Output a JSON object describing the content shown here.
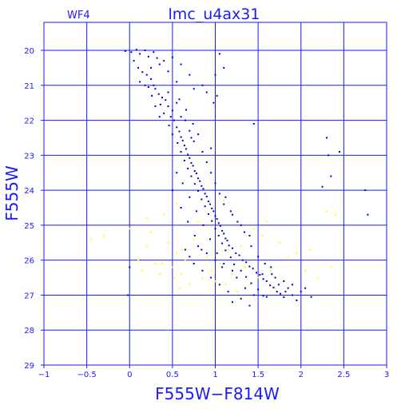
{
  "chart_data": {
    "type": "scatter",
    "title": "lmc_u4ax31",
    "panel_label": "WF4",
    "xlabel": "F555W−F814W",
    "ylabel": "F555W",
    "xlim": [
      -1,
      3
    ],
    "ylim": [
      29,
      19.2
    ],
    "y_inverted": true,
    "grid": true,
    "x_ticks": [
      -1,
      -0.5,
      0,
      0.5,
      1,
      1.5,
      2,
      2.5,
      3
    ],
    "x_tick_labels": [
      "−1",
      "−0.5",
      "0",
      "0.5",
      "1",
      "1.5",
      "2",
      "2.5",
      "3"
    ],
    "y_ticks": [
      20,
      21,
      22,
      23,
      24,
      25,
      26,
      27,
      28,
      29
    ],
    "y_tick_labels": [
      "20",
      "21",
      "22",
      "23",
      "24",
      "25",
      "26",
      "27",
      "28",
      "29"
    ],
    "colors": {
      "axes": "#1a1aff",
      "main_series": "#0000cc",
      "secondary_series": "#ffff00"
    },
    "series": [
      {
        "color": "#0000cc",
        "points": [
          [
            -0.05,
            20.02
          ],
          [
            0.02,
            20.05
          ],
          [
            0.08,
            19.98
          ],
          [
            0.12,
            20.1
          ],
          [
            0.18,
            20.0
          ],
          [
            0.22,
            20.18
          ],
          [
            0.28,
            20.05
          ],
          [
            0.32,
            20.22
          ],
          [
            0.05,
            20.3
          ],
          [
            0.1,
            20.5
          ],
          [
            0.15,
            20.62
          ],
          [
            0.2,
            20.7
          ],
          [
            0.25,
            20.82
          ],
          [
            0.12,
            20.9
          ],
          [
            0.18,
            21.0
          ],
          [
            0.22,
            21.05
          ],
          [
            0.3,
            21.1
          ],
          [
            0.34,
            21.25
          ],
          [
            0.26,
            21.3
          ],
          [
            0.38,
            21.35
          ],
          [
            0.42,
            21.42
          ],
          [
            0.36,
            21.55
          ],
          [
            0.45,
            21.6
          ],
          [
            0.5,
            21.72
          ],
          [
            0.4,
            21.8
          ],
          [
            0.48,
            21.9
          ],
          [
            0.52,
            22.0
          ],
          [
            0.46,
            22.15
          ],
          [
            0.55,
            22.2
          ],
          [
            0.58,
            22.32
          ],
          [
            0.5,
            22.4
          ],
          [
            0.6,
            22.48
          ],
          [
            0.62,
            22.58
          ],
          [
            0.56,
            22.65
          ],
          [
            0.64,
            22.72
          ],
          [
            0.66,
            22.82
          ],
          [
            0.6,
            22.9
          ],
          [
            0.68,
            22.98
          ],
          [
            0.7,
            23.08
          ],
          [
            0.64,
            23.15
          ],
          [
            0.72,
            23.22
          ],
          [
            0.74,
            23.3
          ],
          [
            0.68,
            23.38
          ],
          [
            0.76,
            23.45
          ],
          [
            0.78,
            23.52
          ],
          [
            0.72,
            23.6
          ],
          [
            0.8,
            23.66
          ],
          [
            0.82,
            23.74
          ],
          [
            0.76,
            23.82
          ],
          [
            0.84,
            23.88
          ],
          [
            0.86,
            23.96
          ],
          [
            0.8,
            24.02
          ],
          [
            0.88,
            24.1
          ],
          [
            0.9,
            24.18
          ],
          [
            0.84,
            24.26
          ],
          [
            0.92,
            24.32
          ],
          [
            0.94,
            24.4
          ],
          [
            0.88,
            24.46
          ],
          [
            0.96,
            24.52
          ],
          [
            0.98,
            24.6
          ],
          [
            0.92,
            24.68
          ],
          [
            1.0,
            24.74
          ],
          [
            1.02,
            24.82
          ],
          [
            0.96,
            24.88
          ],
          [
            1.04,
            24.94
          ],
          [
            1.06,
            25.02
          ],
          [
            1.0,
            25.1
          ],
          [
            1.08,
            25.16
          ],
          [
            1.1,
            25.24
          ],
          [
            1.04,
            25.3
          ],
          [
            1.12,
            25.38
          ],
          [
            1.14,
            25.44
          ],
          [
            1.08,
            25.52
          ],
          [
            1.16,
            25.58
          ],
          [
            1.2,
            25.66
          ],
          [
            1.12,
            25.72
          ],
          [
            1.24,
            25.8
          ],
          [
            1.28,
            25.86
          ],
          [
            1.18,
            25.92
          ],
          [
            1.32,
            26.0
          ],
          [
            1.36,
            26.06
          ],
          [
            1.22,
            26.12
          ],
          [
            1.4,
            26.18
          ],
          [
            1.44,
            26.24
          ],
          [
            1.3,
            26.3
          ],
          [
            1.48,
            26.36
          ],
          [
            1.52,
            26.42
          ],
          [
            1.36,
            26.48
          ],
          [
            1.56,
            26.54
          ],
          [
            1.6,
            26.6
          ],
          [
            1.42,
            26.66
          ],
          [
            1.64,
            26.72
          ],
          [
            1.68,
            26.78
          ],
          [
            1.5,
            26.84
          ],
          [
            1.72,
            26.9
          ],
          [
            1.76,
            26.96
          ],
          [
            1.56,
            27.02
          ],
          [
            1.8,
            27.06
          ],
          [
            1.3,
            27.1
          ],
          [
            1.2,
            27.2
          ],
          [
            1.4,
            27.3
          ],
          [
            1.6,
            27.05
          ],
          [
            1.9,
            27.0
          ],
          [
            2.0,
            26.9
          ],
          [
            2.05,
            26.8
          ],
          [
            1.95,
            27.15
          ],
          [
            1.15,
            26.9
          ],
          [
            1.05,
            26.7
          ],
          [
            0.95,
            26.5
          ],
          [
            0.85,
            26.3
          ],
          [
            0.75,
            26.1
          ],
          [
            0.7,
            25.9
          ],
          [
            0.65,
            25.7
          ],
          [
            1.25,
            26.5
          ],
          [
            1.35,
            26.8
          ],
          [
            1.45,
            27.0
          ],
          [
            1.55,
            26.4
          ],
          [
            1.65,
            26.2
          ],
          [
            1.7,
            26.5
          ],
          [
            1.8,
            26.6
          ],
          [
            1.85,
            26.8
          ],
          [
            1.1,
            26.1
          ],
          [
            0.9,
            25.8
          ],
          [
            0.8,
            25.6
          ],
          [
            1.0,
            26.0
          ],
          [
            1.2,
            26.3
          ],
          [
            0.45,
            21.2
          ],
          [
            0.55,
            21.5
          ],
          [
            0.6,
            21.9
          ],
          [
            0.7,
            22.3
          ],
          [
            0.75,
            22.6
          ],
          [
            0.85,
            22.9
          ],
          [
            0.9,
            23.2
          ],
          [
            0.95,
            23.5
          ],
          [
            1.0,
            23.8
          ],
          [
            1.05,
            24.1
          ],
          [
            1.1,
            24.4
          ],
          [
            1.2,
            24.7
          ],
          [
            1.3,
            25.0
          ],
          [
            1.4,
            25.3
          ],
          [
            0.65,
            22.0
          ],
          [
            0.72,
            22.5
          ],
          [
            0.58,
            21.4
          ],
          [
            0.66,
            21.7
          ],
          [
            0.74,
            22.1
          ],
          [
            0.8,
            22.4
          ],
          [
            0.62,
            23.8
          ],
          [
            0.7,
            24.2
          ],
          [
            0.78,
            24.6
          ],
          [
            0.86,
            25.0
          ],
          [
            0.94,
            25.4
          ],
          [
            1.02,
            25.8
          ],
          [
            1.08,
            26.2
          ],
          [
            0.55,
            23.5
          ],
          [
            0.5,
            24.0
          ],
          [
            0.6,
            24.5
          ],
          [
            0.68,
            24.9
          ],
          [
            0.76,
            25.3
          ],
          [
            0.84,
            25.7
          ],
          [
            1.12,
            24.2
          ],
          [
            1.18,
            24.6
          ],
          [
            1.26,
            24.9
          ],
          [
            1.34,
            25.2
          ],
          [
            1.42,
            25.6
          ],
          [
            1.5,
            25.9
          ],
          [
            1.58,
            26.1
          ],
          [
            1.66,
            26.4
          ],
          [
            1.74,
            26.7
          ],
          [
            1.82,
            26.9
          ],
          [
            1.9,
            26.7
          ],
          [
            2.12,
            27.05
          ],
          [
            0.3,
            21.6
          ],
          [
            0.35,
            21.9
          ],
          [
            0.28,
            21.0
          ],
          [
            0.95,
            22.8
          ],
          [
            1.0,
            20.7
          ],
          [
            1.02,
            21.3
          ],
          [
            0.98,
            21.5
          ],
          [
            1.05,
            20.1
          ],
          [
            1.1,
            20.5
          ],
          [
            0.85,
            21.0
          ],
          [
            0.9,
            21.2
          ],
          [
            0.75,
            21.1
          ],
          [
            0.4,
            20.3
          ],
          [
            0.45,
            20.6
          ],
          [
            0.55,
            20.9
          ],
          [
            0.6,
            20.4
          ],
          [
            0.7,
            20.7
          ],
          [
            0.5,
            20.2
          ],
          [
            0.35,
            20.4
          ],
          [
            0.25,
            20.5
          ],
          [
            1.45,
            22.1
          ],
          [
            2.3,
            22.5
          ],
          [
            2.32,
            23.0
          ],
          [
            2.35,
            23.6
          ],
          [
            2.25,
            23.9
          ],
          [
            2.45,
            22.9
          ],
          [
            2.75,
            24.0
          ],
          [
            2.78,
            24.7
          ],
          [
            0.0,
            26.2
          ],
          [
            -0.02,
            27.0
          ]
        ]
      },
      {
        "color": "#ffff00",
        "points": [
          [
            -0.45,
            25.4
          ],
          [
            -0.3,
            25.3
          ],
          [
            0.0,
            25.1
          ],
          [
            0.1,
            26.0
          ],
          [
            0.2,
            25.6
          ],
          [
            0.25,
            25.2
          ],
          [
            0.3,
            26.1
          ],
          [
            0.35,
            26.4
          ],
          [
            0.4,
            24.7
          ],
          [
            0.45,
            25.5
          ],
          [
            0.5,
            26.2
          ],
          [
            0.55,
            25.8
          ],
          [
            0.6,
            26.4
          ],
          [
            0.65,
            26.0
          ],
          [
            0.7,
            26.7
          ],
          [
            0.75,
            25.4
          ],
          [
            0.8,
            24.9
          ],
          [
            0.85,
            26.5
          ],
          [
            0.9,
            25.9
          ],
          [
            0.95,
            26.3
          ],
          [
            1.0,
            26.6
          ],
          [
            1.05,
            26.1
          ],
          [
            1.1,
            24.3
          ],
          [
            1.15,
            25.7
          ],
          [
            1.2,
            26.4
          ],
          [
            1.25,
            26.9
          ],
          [
            1.3,
            25.6
          ],
          [
            1.35,
            26.2
          ],
          [
            1.4,
            26.7
          ],
          [
            1.45,
            25.1
          ],
          [
            1.5,
            26.5
          ],
          [
            1.55,
            25.3
          ],
          [
            1.6,
            24.9
          ],
          [
            1.65,
            26.3
          ],
          [
            1.7,
            26.8
          ],
          [
            1.75,
            25.5
          ],
          [
            1.8,
            26.6
          ],
          [
            1.85,
            25.9
          ],
          [
            1.95,
            25.8
          ],
          [
            2.05,
            26.3
          ],
          [
            2.1,
            25.7
          ],
          [
            2.2,
            26.5
          ],
          [
            2.3,
            24.6
          ],
          [
            2.35,
            26.2
          ],
          [
            2.4,
            24.7
          ],
          [
            0.55,
            24.4
          ],
          [
            0.2,
            24.8
          ],
          [
            0.15,
            26.3
          ],
          [
            0.62,
            25.7
          ],
          [
            1.12,
            26.7
          ],
          [
            0.38,
            26.1
          ],
          [
            0.52,
            26.5
          ],
          [
            0.58,
            26.8
          ]
        ]
      }
    ]
  }
}
